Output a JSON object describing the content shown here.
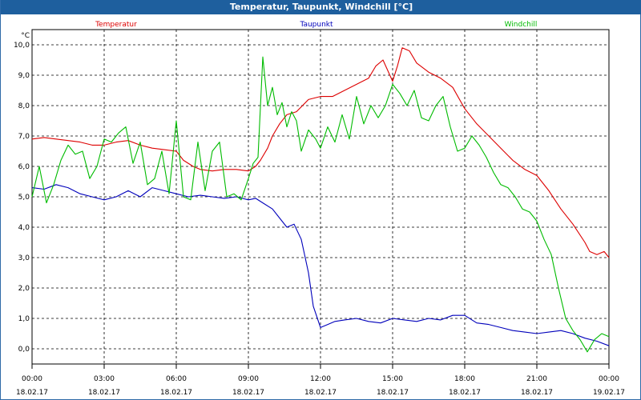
{
  "window": {
    "title": "Temperatur, Taupunkt, Windchill [°C]"
  },
  "chart_data": {
    "type": "line",
    "title": "Temperatur, Taupunkt, Windchill [°C]",
    "yunit": "°C",
    "ylim": [
      -0.5,
      10.5
    ],
    "yticks": [
      0.0,
      1.0,
      2.0,
      3.0,
      4.0,
      5.0,
      6.0,
      7.0,
      8.0,
      9.0,
      10.0
    ],
    "ytick_labels": [
      "0,0",
      "1,0",
      "2,0",
      "3,0",
      "4,0",
      "5,0",
      "6,0",
      "7,0",
      "8,0",
      "9,0",
      "10,0"
    ],
    "xlim": [
      0,
      24
    ],
    "xticks": [
      0,
      3,
      6,
      9,
      12,
      15,
      18,
      21,
      24
    ],
    "xtick_time_labels": [
      "00:00",
      "03:00",
      "06:00",
      "09:00",
      "12:00",
      "15:00",
      "18:00",
      "21:00",
      "00:00"
    ],
    "xtick_date_labels": [
      "18.02.17",
      "18.02.17",
      "18.02.17",
      "18.02.17",
      "18.02.17",
      "18.02.17",
      "18.02.17",
      "18.02.17",
      "19.02.17"
    ],
    "grid": true,
    "legend_position": "top",
    "series": [
      {
        "name": "Temperatur",
        "color": "#dd0000",
        "x": [
          0.0,
          0.5,
          1.0,
          1.5,
          2.0,
          2.5,
          3.0,
          3.5,
          4.0,
          4.5,
          5.0,
          5.5,
          6.0,
          6.3,
          6.7,
          7.0,
          7.5,
          8.0,
          8.5,
          9.0,
          9.3,
          9.5,
          9.8,
          10.0,
          10.3,
          10.6,
          11.0,
          11.5,
          12.0,
          12.5,
          13.0,
          13.5,
          14.0,
          14.3,
          14.6,
          15.0,
          15.2,
          15.4,
          15.7,
          16.0,
          16.5,
          17.0,
          17.5,
          18.0,
          18.5,
          19.0,
          19.5,
          20.0,
          20.5,
          21.0,
          21.5,
          22.0,
          22.5,
          23.0,
          23.2,
          23.5,
          23.8,
          24.0
        ],
        "y": [
          6.9,
          6.95,
          6.9,
          6.85,
          6.8,
          6.7,
          6.7,
          6.8,
          6.85,
          6.7,
          6.6,
          6.55,
          6.5,
          6.2,
          6.0,
          5.9,
          5.85,
          5.9,
          5.9,
          5.85,
          6.0,
          6.2,
          6.6,
          7.0,
          7.4,
          7.7,
          7.8,
          8.2,
          8.3,
          8.3,
          8.5,
          8.7,
          8.9,
          9.3,
          9.5,
          8.8,
          9.3,
          9.9,
          9.8,
          9.4,
          9.1,
          8.9,
          8.6,
          7.9,
          7.4,
          7.0,
          6.6,
          6.2,
          5.9,
          5.7,
          5.2,
          4.6,
          4.1,
          3.5,
          3.2,
          3.1,
          3.2,
          3.0
        ]
      },
      {
        "name": "Taupunkt",
        "color": "#0000bb",
        "x": [
          0.0,
          0.5,
          1.0,
          1.5,
          2.0,
          2.5,
          3.0,
          3.5,
          4.0,
          4.5,
          5.0,
          5.5,
          6.0,
          6.5,
          7.0,
          7.5,
          8.0,
          8.5,
          9.0,
          9.3,
          9.6,
          10.0,
          10.3,
          10.6,
          10.9,
          11.2,
          11.5,
          11.7,
          12.0,
          12.3,
          12.6,
          13.0,
          13.5,
          14.0,
          14.5,
          15.0,
          15.5,
          16.0,
          16.5,
          17.0,
          17.5,
          18.0,
          18.5,
          19.0,
          19.5,
          20.0,
          20.5,
          21.0,
          21.5,
          22.0,
          22.5,
          23.0,
          23.5,
          24.0
        ],
        "y": [
          5.3,
          5.25,
          5.4,
          5.3,
          5.1,
          5.0,
          4.9,
          5.0,
          5.2,
          5.0,
          5.3,
          5.2,
          5.1,
          5.0,
          5.05,
          5.0,
          4.95,
          5.0,
          4.9,
          4.95,
          4.8,
          4.6,
          4.3,
          4.0,
          4.1,
          3.6,
          2.5,
          1.4,
          0.7,
          0.8,
          0.9,
          0.95,
          1.0,
          0.9,
          0.85,
          1.0,
          0.95,
          0.9,
          1.0,
          0.95,
          1.1,
          1.1,
          0.85,
          0.8,
          0.7,
          0.6,
          0.55,
          0.5,
          0.55,
          0.6,
          0.5,
          0.35,
          0.25,
          0.1
        ]
      },
      {
        "name": "Windchill",
        "color": "#00bb00",
        "x": [
          0.0,
          0.3,
          0.6,
          0.9,
          1.2,
          1.5,
          1.8,
          2.1,
          2.4,
          2.7,
          3.0,
          3.3,
          3.6,
          3.9,
          4.2,
          4.5,
          4.8,
          5.1,
          5.4,
          5.7,
          6.0,
          6.3,
          6.6,
          6.9,
          7.2,
          7.5,
          7.8,
          8.1,
          8.4,
          8.7,
          9.0,
          9.2,
          9.4,
          9.6,
          9.8,
          10.0,
          10.2,
          10.4,
          10.6,
          10.8,
          11.0,
          11.2,
          11.5,
          11.8,
          12.0,
          12.3,
          12.6,
          12.9,
          13.2,
          13.5,
          13.8,
          14.1,
          14.4,
          14.7,
          15.0,
          15.3,
          15.6,
          15.9,
          16.2,
          16.5,
          16.8,
          17.1,
          17.4,
          17.7,
          18.0,
          18.3,
          18.6,
          18.9,
          19.2,
          19.5,
          19.8,
          20.1,
          20.4,
          20.7,
          21.0,
          21.3,
          21.6,
          21.9,
          22.2,
          22.5,
          22.8,
          23.1,
          23.4,
          23.7,
          24.0
        ],
        "y": [
          5.0,
          6.0,
          4.8,
          5.4,
          6.2,
          6.7,
          6.4,
          6.5,
          5.6,
          6.0,
          6.9,
          6.8,
          7.1,
          7.3,
          6.1,
          6.8,
          5.4,
          5.6,
          6.5,
          5.1,
          7.5,
          5.0,
          4.9,
          6.8,
          5.2,
          6.5,
          6.8,
          5.0,
          5.1,
          4.9,
          5.6,
          6.1,
          6.3,
          9.6,
          8.0,
          8.6,
          7.7,
          8.1,
          7.3,
          7.8,
          7.5,
          6.5,
          7.2,
          6.9,
          6.6,
          7.3,
          6.8,
          7.7,
          6.9,
          8.3,
          7.4,
          8.0,
          7.6,
          8.0,
          8.7,
          8.4,
          8.0,
          8.5,
          7.6,
          7.5,
          8.0,
          8.3,
          7.3,
          6.5,
          6.6,
          7.0,
          6.7,
          6.3,
          5.8,
          5.4,
          5.3,
          5.0,
          4.6,
          4.5,
          4.2,
          3.6,
          3.1,
          2.0,
          1.0,
          0.6,
          0.3,
          -0.1,
          0.3,
          0.5,
          0.4
        ]
      }
    ]
  }
}
